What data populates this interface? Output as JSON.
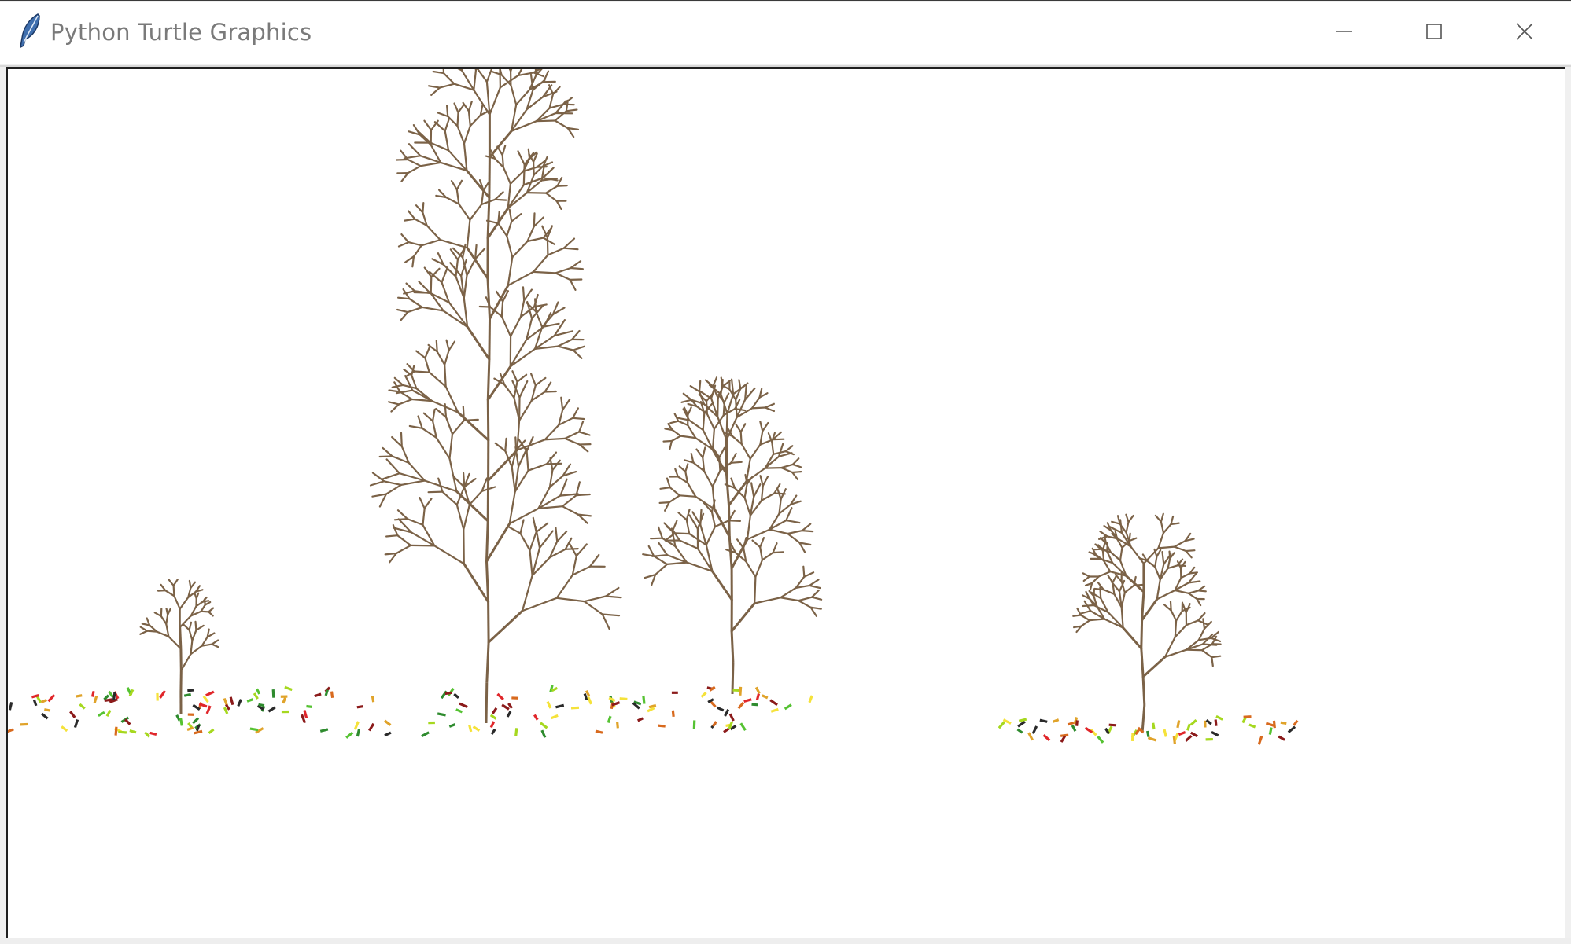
{
  "window": {
    "title": "Python Turtle Graphics",
    "app_icon": "feather-icon",
    "controls": [
      {
        "name": "minimize",
        "icon": "minimize-icon"
      },
      {
        "name": "maximize",
        "icon": "maximize-icon"
      },
      {
        "name": "close",
        "icon": "close-icon"
      }
    ]
  },
  "canvas": {
    "background": "#ffffff",
    "branch_color": "#7b6247",
    "leaf_colors": [
      "#2e8b2e",
      "#55c232",
      "#a6d81f",
      "#f5e23a",
      "#e0a32a",
      "#d86a1e",
      "#e0262a",
      "#8b1a1a",
      "#2a2a2a"
    ],
    "tree_count": 4
  }
}
